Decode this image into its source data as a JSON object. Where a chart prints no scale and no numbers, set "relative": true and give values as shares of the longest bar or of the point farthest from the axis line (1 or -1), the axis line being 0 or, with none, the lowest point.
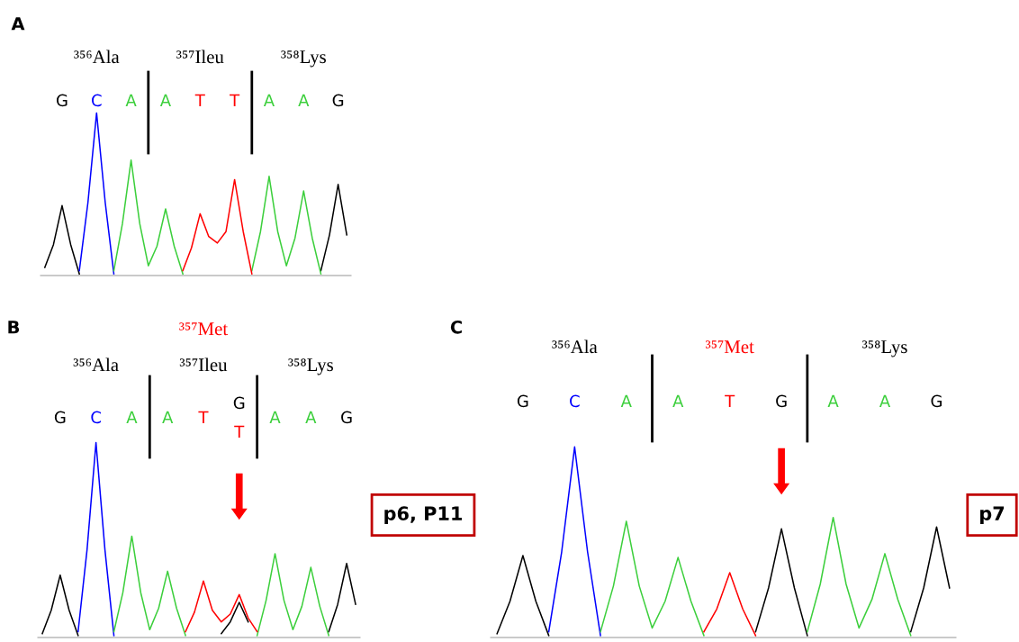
{
  "chart_data": [
    {
      "type": "line",
      "relative": true,
      "title": "A",
      "annotations": [
        "³⁵⁶Ala",
        "³⁵⁷Ileu",
        "³⁵⁸Lys"
      ],
      "categories": [
        null,
        null,
        "G",
        null,
        null,
        null,
        "C",
        null,
        null,
        null,
        "A",
        null,
        null,
        null,
        "A",
        null,
        null,
        null,
        "T",
        null,
        null,
        null,
        "T",
        null,
        null,
        null,
        "A",
        null,
        null,
        null,
        "A",
        null,
        null,
        null,
        "G",
        null
      ],
      "series": [
        {
          "color": "#000000",
          "values": [
            0.05,
            0.19,
            0.43,
            0.19,
            0.01,
            null,
            null,
            null,
            null,
            null,
            null,
            null,
            null,
            null,
            null,
            null,
            null,
            null,
            null,
            null,
            null,
            null,
            null,
            null,
            null,
            null,
            null,
            null,
            null,
            null,
            null,
            null,
            0.03,
            0.25,
            0.56,
            0.25
          ]
        },
        {
          "color": "#0000ff",
          "values": [
            null,
            null,
            null,
            null,
            0.03,
            0.45,
            1,
            0.45,
            0.01,
            null,
            null,
            null,
            null,
            null,
            null,
            null,
            null,
            null,
            null,
            null,
            null,
            null,
            null,
            null,
            null,
            null,
            null,
            null,
            null,
            null,
            null,
            null,
            null,
            null,
            null,
            null
          ]
        },
        {
          "color": "#3ccf3c",
          "values": [
            null,
            null,
            null,
            null,
            null,
            null,
            null,
            null,
            0.03,
            0.32,
            0.71,
            0.32,
            0.06,
            0.18,
            0.41,
            0.18,
            0.01,
            null,
            null,
            null,
            null,
            null,
            null,
            null,
            0.03,
            0.27,
            0.61,
            0.27,
            0.06,
            0.23,
            0.52,
            0.23,
            0.01,
            null,
            null,
            null
          ]
        },
        {
          "color": "#ff0000",
          "values": [
            null,
            null,
            null,
            null,
            null,
            null,
            null,
            null,
            null,
            null,
            null,
            null,
            null,
            null,
            null,
            null,
            0.03,
            0.17,
            0.38,
            0.24,
            0.2,
            0.27,
            0.59,
            0.27,
            0.01,
            null,
            null,
            null,
            null,
            null,
            null,
            null,
            null,
            null,
            null,
            null
          ]
        }
      ]
    },
    {
      "type": "line",
      "relative": true,
      "title": "B",
      "subtitle": "³⁵⁷Met",
      "annotations": [
        "³⁵⁶Ala",
        "³⁵⁷Ileu",
        "³⁵⁸Lys",
        "p6, P11"
      ],
      "categories": [
        null,
        null,
        "G",
        null,
        null,
        null,
        "C",
        null,
        null,
        null,
        "A",
        null,
        null,
        null,
        "A",
        null,
        null,
        null,
        "T",
        null,
        null,
        null,
        "G\nT",
        null,
        null,
        null,
        "A",
        null,
        null,
        null,
        "A",
        null,
        null,
        null,
        "G",
        null
      ],
      "series": [
        {
          "color": "#000000",
          "values": [
            0.02,
            0.14,
            0.32,
            0.14,
            0.01,
            null,
            null,
            null,
            null,
            null,
            null,
            null,
            null,
            null,
            null,
            null,
            null,
            null,
            null,
            null,
            0.02,
            0.08,
            0.18,
            0.08,
            null,
            null,
            null,
            null,
            null,
            null,
            null,
            null,
            0.03,
            0.17,
            0.38,
            0.17
          ]
        },
        {
          "color": "#0000ff",
          "values": [
            null,
            null,
            null,
            null,
            0.03,
            0.45,
            1,
            0.45,
            0.01,
            null,
            null,
            null,
            null,
            null,
            null,
            null,
            null,
            null,
            null,
            null,
            null,
            null,
            null,
            null,
            null,
            null,
            null,
            null,
            null,
            null,
            null,
            null,
            null,
            null,
            null,
            null
          ]
        },
        {
          "color": "#3ccf3c",
          "values": [
            null,
            null,
            null,
            null,
            null,
            null,
            null,
            null,
            0.03,
            0.23,
            0.52,
            0.23,
            0.04,
            0.15,
            0.34,
            0.15,
            0.01,
            null,
            null,
            null,
            null,
            null,
            null,
            null,
            0.01,
            0.19,
            0.43,
            0.19,
            0.04,
            0.16,
            0.36,
            0.16,
            0.01,
            null,
            null,
            null
          ]
        },
        {
          "color": "#ff0000",
          "values": [
            null,
            null,
            null,
            null,
            null,
            null,
            null,
            null,
            null,
            null,
            null,
            null,
            null,
            null,
            null,
            null,
            0.03,
            0.13,
            0.29,
            0.14,
            0.08,
            0.12,
            0.22,
            0.1,
            0.03,
            null,
            null,
            null,
            null,
            null,
            null,
            null,
            null,
            null,
            null,
            null
          ]
        }
      ]
    },
    {
      "type": "line",
      "relative": true,
      "title": "C",
      "subtitle": "³⁵⁷Met",
      "annotations": [
        "³⁵⁶Ala",
        "³⁵⁸Lys",
        "p7"
      ],
      "categories": [
        null,
        null,
        "G",
        null,
        null,
        null,
        "C",
        null,
        null,
        null,
        "A",
        null,
        null,
        null,
        "A",
        null,
        null,
        null,
        "T",
        null,
        null,
        null,
        "G",
        null,
        null,
        null,
        "A",
        null,
        null,
        null,
        "A",
        null,
        null,
        null,
        "G",
        null
      ],
      "series": [
        {
          "color": "#000000",
          "values": [
            0.02,
            0.19,
            0.43,
            0.19,
            0.01,
            null,
            null,
            null,
            null,
            null,
            null,
            null,
            null,
            null,
            null,
            null,
            null,
            null,
            null,
            null,
            0.03,
            0.26,
            0.57,
            0.26,
            0.01,
            null,
            null,
            null,
            null,
            null,
            null,
            null,
            0.03,
            0.26,
            0.58,
            0.26
          ]
        },
        {
          "color": "#0000ff",
          "values": [
            null,
            null,
            null,
            null,
            0.03,
            0.45,
            1,
            0.45,
            0.01,
            null,
            null,
            null,
            null,
            null,
            null,
            null,
            null,
            null,
            null,
            null,
            null,
            null,
            null,
            null,
            null,
            null,
            null,
            null,
            null,
            null,
            null,
            null,
            null,
            null,
            null,
            null
          ]
        },
        {
          "color": "#3ccf3c",
          "values": [
            null,
            null,
            null,
            null,
            null,
            null,
            null,
            null,
            0.03,
            0.27,
            0.61,
            0.27,
            0.05,
            0.19,
            0.42,
            0.19,
            0.01,
            null,
            null,
            null,
            null,
            null,
            null,
            null,
            0.03,
            0.28,
            0.63,
            0.28,
            0.05,
            0.2,
            0.44,
            0.2,
            0.01,
            null,
            null,
            null
          ]
        },
        {
          "color": "#ff0000",
          "values": [
            null,
            null,
            null,
            null,
            null,
            null,
            null,
            null,
            null,
            null,
            null,
            null,
            null,
            null,
            null,
            null,
            0.03,
            0.15,
            0.34,
            0.15,
            0.01,
            null,
            null,
            null,
            null,
            null,
            null,
            null,
            null,
            null,
            null,
            null,
            null,
            null,
            null,
            null
          ]
        }
      ]
    }
  ]
}
